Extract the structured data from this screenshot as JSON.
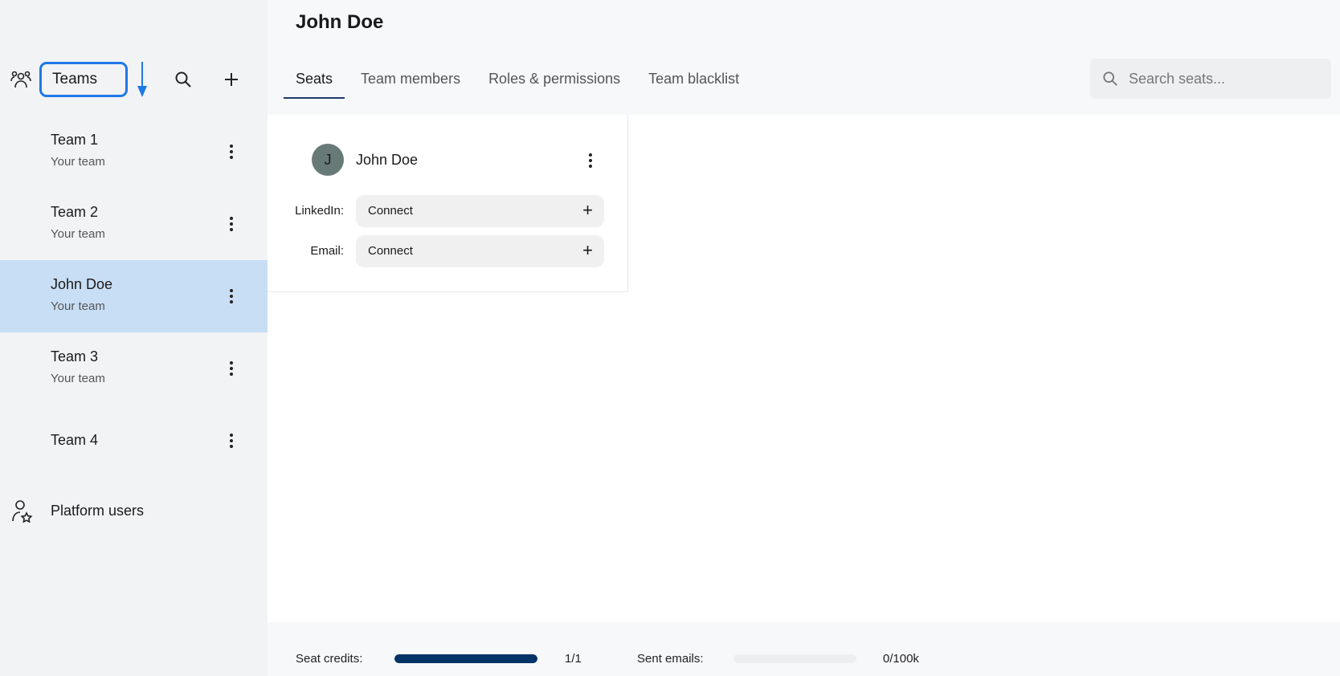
{
  "sidebar": {
    "section_label": "Teams",
    "teams": [
      {
        "name": "Team 1",
        "subtitle": "Your team"
      },
      {
        "name": "Team 2",
        "subtitle": "Your team"
      },
      {
        "name": "John Doe",
        "subtitle": "Your team",
        "selected": true
      },
      {
        "name": "Team 3",
        "subtitle": "Your team"
      },
      {
        "name": "Team 4"
      }
    ],
    "platform_users": "Platform users"
  },
  "header": {
    "title": "John Doe"
  },
  "tabs": [
    {
      "label": "Seats",
      "active": true
    },
    {
      "label": "Team members"
    },
    {
      "label": "Roles & permissions"
    },
    {
      "label": "Team blacklist"
    }
  ],
  "search": {
    "placeholder": "Search seats..."
  },
  "seat_card": {
    "initial": "J",
    "name": "John Doe",
    "fields": [
      {
        "label": "LinkedIn:",
        "button": "Connect"
      },
      {
        "label": "Email:",
        "button": "Connect"
      }
    ]
  },
  "footer": {
    "seat_credits_label": "Seat credits:",
    "seat_credits_value": "1/1",
    "seat_credits_fraction": 1.0,
    "sent_emails_label": "Sent emails:",
    "sent_emails_value": "0/100k",
    "sent_emails_fraction": 0.0
  },
  "colors": {
    "accent": "#1f78e8",
    "selected_bg": "#c8def5",
    "progress": "#003366",
    "avatar": "#687a78"
  }
}
